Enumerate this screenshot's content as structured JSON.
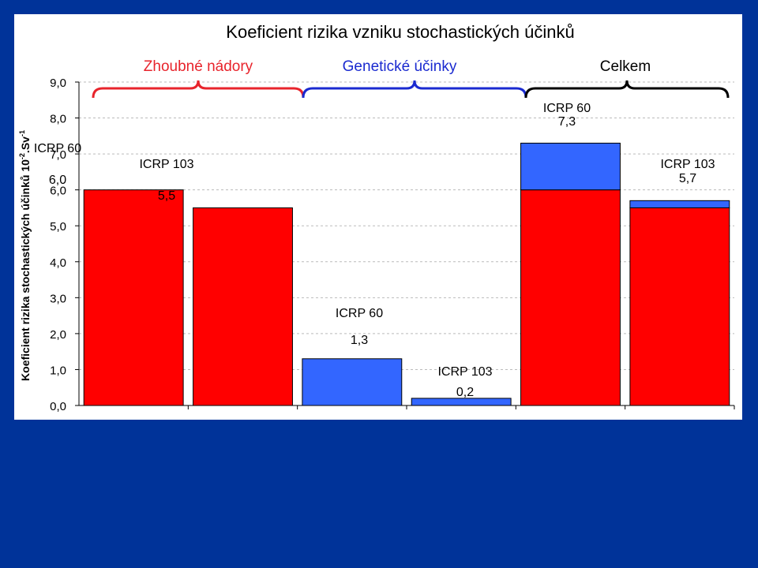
{
  "chart_data": {
    "type": "bar",
    "title": "Koeficient rizika vzniku stochastických účinků",
    "ylabel": "Koeficient rizika stochastických účinků 10",
    "ylabel_exp1": "-2",
    "ylabel_unit": ".Sv",
    "ylabel_exp2": "-1",
    "ylim": [
      0,
      9
    ],
    "yticks": [
      "0,0",
      "1,0",
      "2,0",
      "3,0",
      "4,0",
      "5,0",
      "6,0",
      "7,0",
      "8,0",
      "9,0"
    ],
    "gridlines": true,
    "groups": [
      {
        "label": "Zhoubné nádory",
        "color": "#e8242c"
      },
      {
        "label": "Genetické účinky",
        "color": "#1a2ad0"
      },
      {
        "label": "Celkem",
        "color": "#000000"
      }
    ],
    "bars": [
      {
        "name": "ICRP 60",
        "value_label": "6,0",
        "segments": [
          {
            "value": 6.0,
            "color": "#ff0000"
          }
        ]
      },
      {
        "name": "ICRP 103",
        "value_label": "5,5",
        "segments": [
          {
            "value": 5.5,
            "color": "#ff0000"
          }
        ]
      },
      {
        "name": "ICRP 60",
        "value_label": "1,3",
        "segments": [
          {
            "value": 1.3,
            "color": "#3366ff"
          }
        ]
      },
      {
        "name": "ICRP 103",
        "value_label": "0,2",
        "segments": [
          {
            "value": 0.2,
            "color": "#3366ff"
          }
        ]
      },
      {
        "name": "ICRP 60",
        "value_label": "7,3",
        "segments": [
          {
            "value": 6.0,
            "color": "#ff0000"
          },
          {
            "value": 1.3,
            "color": "#3366ff"
          }
        ]
      },
      {
        "name": "ICRP 103",
        "value_label": "5,7",
        "segments": [
          {
            "value": 5.5,
            "color": "#ff0000"
          },
          {
            "value": 0.2,
            "color": "#3366ff"
          }
        ]
      }
    ]
  },
  "colors": {
    "background": "#003399",
    "panel": "#ffffff"
  }
}
